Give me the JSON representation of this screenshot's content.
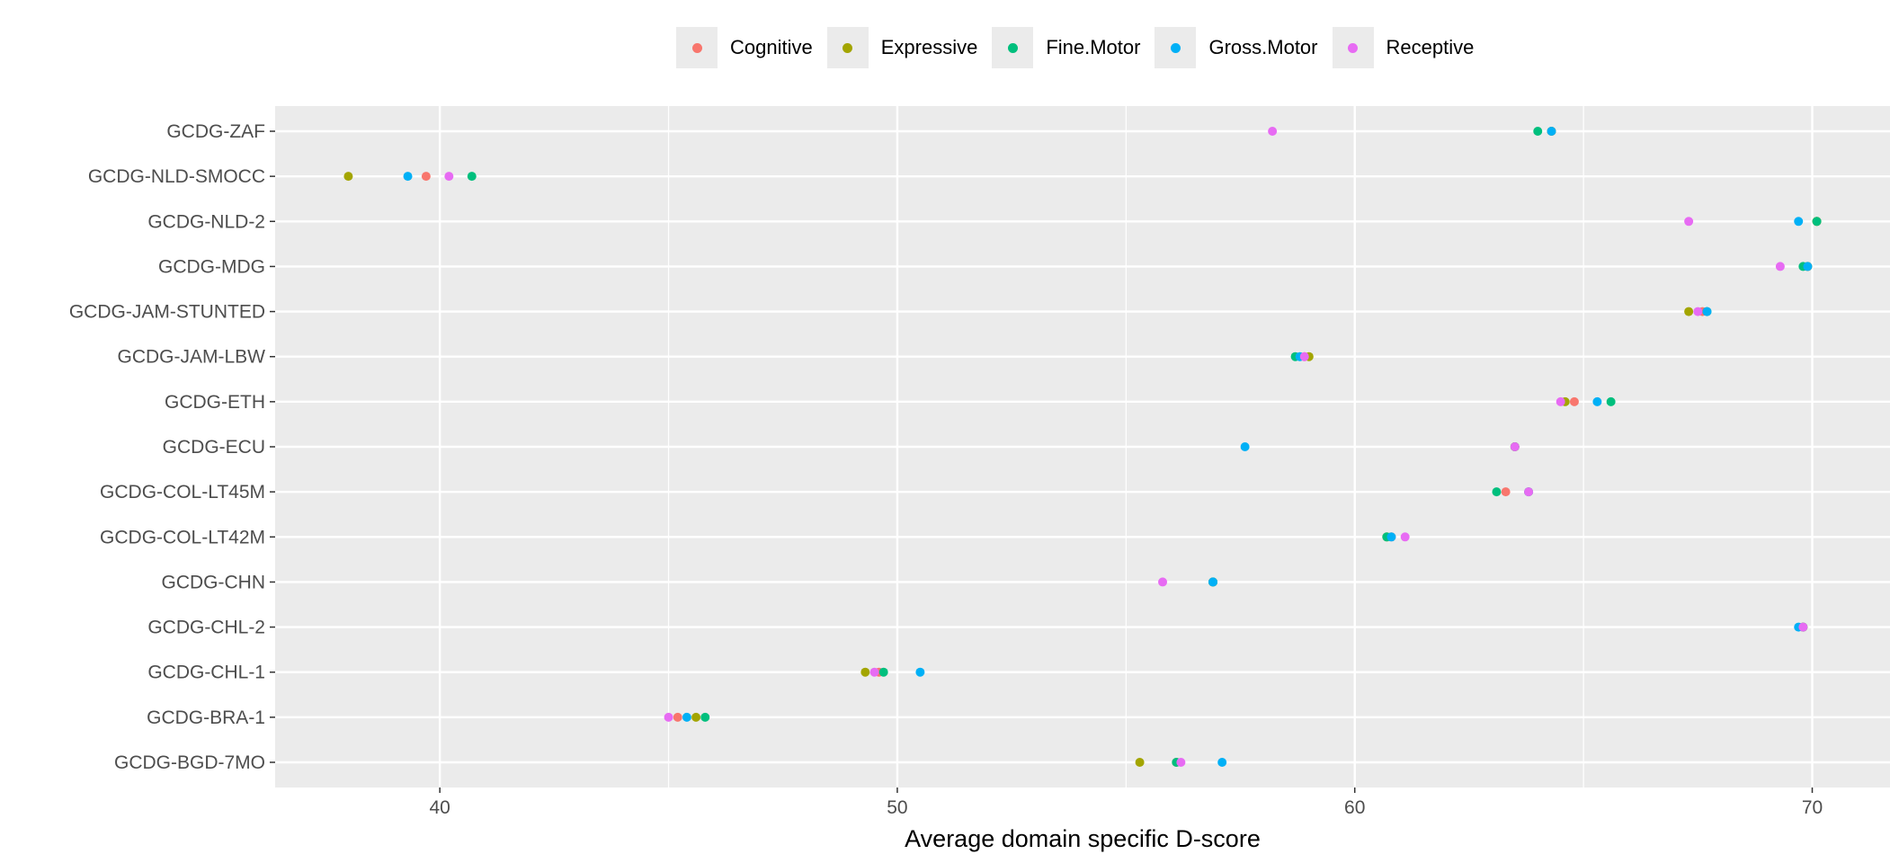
{
  "chart_data": {
    "type": "scatter",
    "title": "",
    "xlabel": "Average domain specific D-score",
    "ylabel": "",
    "xlim": [
      36.4,
      71.7
    ],
    "xticks": [
      40,
      50,
      60,
      70
    ],
    "grid": true,
    "legend_position": "top",
    "categories": [
      "GCDG-ZAF",
      "GCDG-NLD-SMOCC",
      "GCDG-NLD-2",
      "GCDG-MDG",
      "GCDG-JAM-STUNTED",
      "GCDG-JAM-LBW",
      "GCDG-ETH",
      "GCDG-ECU",
      "GCDG-COL-LT45M",
      "GCDG-COL-LT42M",
      "GCDG-CHN",
      "GCDG-CHL-2",
      "GCDG-CHL-1",
      "GCDG-BRA-1",
      "GCDG-BGD-7MO"
    ],
    "series": [
      {
        "name": "Cognitive",
        "color": "#F8766D",
        "values": [
          64.3,
          39.7,
          70.1,
          69.9,
          67.6,
          58.9,
          64.8,
          63.5,
          63.3,
          60.8,
          56.9,
          69.8,
          49.6,
          45.2,
          56.1
        ]
      },
      {
        "name": "Expressive",
        "color": "#A3A500",
        "values": [
          64.3,
          38.0,
          70.1,
          69.9,
          67.3,
          59.0,
          64.6,
          63.5,
          63.8,
          60.7,
          56.9,
          69.8,
          49.3,
          45.6,
          55.3
        ]
      },
      {
        "name": "Fine.Motor",
        "color": "#00BF7D",
        "values": [
          64.0,
          40.7,
          70.1,
          69.8,
          67.7,
          58.7,
          65.6,
          63.5,
          63.1,
          60.7,
          56.9,
          69.8,
          49.7,
          45.8,
          56.1
        ]
      },
      {
        "name": "Gross.Motor",
        "color": "#00B0F6",
        "values": [
          64.3,
          39.3,
          69.7,
          69.9,
          67.7,
          58.8,
          65.3,
          57.6,
          63.8,
          60.8,
          56.9,
          69.7,
          50.5,
          45.4,
          57.1
        ]
      },
      {
        "name": "Receptive",
        "color": "#E76BF3",
        "values": [
          58.2,
          40.2,
          67.3,
          69.3,
          67.5,
          58.9,
          64.5,
          63.5,
          63.8,
          61.1,
          55.8,
          69.8,
          49.5,
          45.0,
          56.2
        ]
      }
    ]
  }
}
